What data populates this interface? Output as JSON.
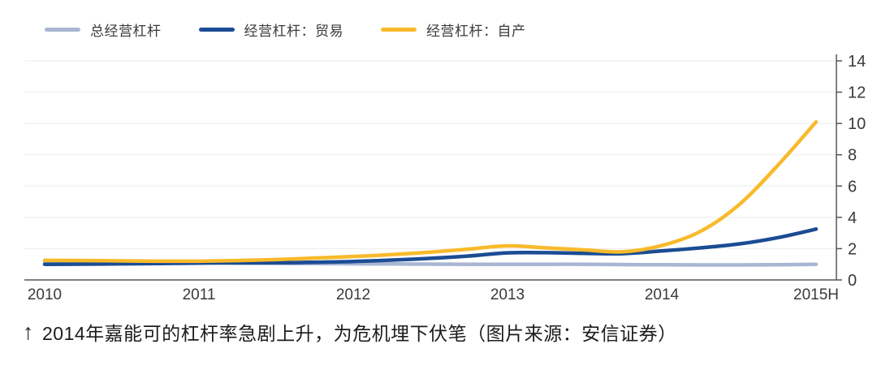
{
  "legend": [
    {
      "label": "总经营杠杆",
      "color": "#a9b6d3"
    },
    {
      "label": "经营杠杆：贸易",
      "color": "#1b4c94"
    },
    {
      "label": "经营杠杆：自产",
      "color": "#f8ba2b"
    }
  ],
  "caption": {
    "arrow": "↑",
    "text": "2014年嘉能可的杠杆率急剧上升，为危机埋下伏笔（图片来源：安信证券）"
  },
  "chart_data": {
    "type": "line",
    "title": "",
    "xlabel": "",
    "ylabel": "",
    "x": [
      0,
      0.25,
      0.5,
      0.75,
      1,
      1.25,
      1.5,
      1.75,
      2,
      2.25,
      2.5,
      2.75,
      3,
      3.25,
      3.5,
      3.75,
      4,
      4.25,
      4.5,
      4.75,
      5
    ],
    "xtick_positions": [
      0,
      1,
      2,
      3,
      4,
      5
    ],
    "xtick_labels": [
      "2010",
      "2011",
      "2012",
      "2013",
      "2014",
      "2015H"
    ],
    "ylim": [
      0,
      14
    ],
    "yticks": [
      0,
      2,
      4,
      6,
      8,
      10,
      12,
      14
    ],
    "grid": true,
    "yaxis_side": "right",
    "legend_position": "top-left",
    "series": [
      {
        "name": "总经营杠杆",
        "color": "#a9b6d3",
        "values": [
          1.15,
          1.14,
          1.12,
          1.1,
          1.1,
          1.08,
          1.06,
          1.05,
          1.03,
          1.02,
          1.01,
          1.0,
          1.0,
          1.0,
          1.0,
          0.98,
          0.97,
          0.96,
          0.96,
          0.97,
          1.0
        ]
      },
      {
        "name": "经营杠杆：贸易",
        "color": "#1b4c94",
        "values": [
          1.0,
          1.01,
          1.03,
          1.05,
          1.08,
          1.09,
          1.1,
          1.13,
          1.18,
          1.27,
          1.38,
          1.53,
          1.73,
          1.74,
          1.7,
          1.68,
          1.85,
          2.05,
          2.3,
          2.7,
          3.25
        ]
      },
      {
        "name": "经营杠杆：自产",
        "color": "#f8ba2b",
        "values": [
          1.25,
          1.24,
          1.22,
          1.2,
          1.2,
          1.24,
          1.3,
          1.4,
          1.5,
          1.62,
          1.78,
          1.97,
          2.18,
          2.05,
          1.92,
          1.8,
          2.2,
          3.1,
          4.8,
          7.3,
          10.1
        ]
      }
    ]
  }
}
